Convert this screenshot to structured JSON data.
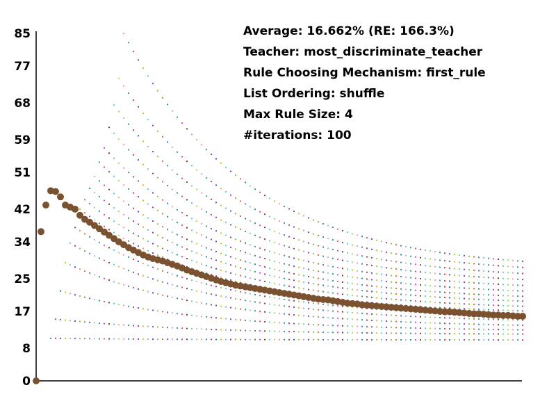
{
  "info": {
    "average": "Average: 16.662% (RE: 166.3%)",
    "teacher": "Teacher: most_discriminate_teacher",
    "mechanism": "Rule Choosing Mechanism: first_rule",
    "ordering": "List Ordering: shuffle",
    "max_rule_size": "Max Rule Size: 4",
    "iterations": "#iterations: 100"
  },
  "chart_data": {
    "type": "scatter",
    "title": "",
    "xlabel": "",
    "ylabel": "",
    "ylim": [
      0,
      85
    ],
    "xlim": [
      0,
      100
    ],
    "y_ticks": [
      "0",
      "8",
      "17",
      "25",
      "34",
      "42",
      "51",
      "59",
      "68",
      "77",
      "85"
    ],
    "grid": false,
    "series_colors": [
      "#1e9e64",
      "#c8325a",
      "#3c50c8",
      "#e6b400",
      "#50d2c8",
      "#8c28c8",
      "#78c81e",
      "#dc6428",
      "#2878dc",
      "#b4b4b4",
      "#14a078",
      "#e63cb4",
      "#6e3c14",
      "#46c8ff",
      "#a0dc3c",
      "#ff8cb4"
    ],
    "average_color": "#7a5230",
    "series_note_start": [
      {
        "start": 3,
        "y0": 10.4,
        "y_end": 10.0
      },
      {
        "start": 4,
        "y0": 15.1,
        "y_end": 11.3
      },
      {
        "start": 5,
        "y0": 22.0,
        "y_end": 12.1
      },
      {
        "start": 6,
        "y0": 28.9,
        "y_end": 13.0
      },
      {
        "start": 7,
        "y0": 33.7,
        "y_end": 14.1
      },
      {
        "start": 8,
        "y0": 37.5,
        "y_end": 15.0
      },
      {
        "start": 9,
        "y0": 42.0,
        "y_end": 16.1
      },
      {
        "start": 10,
        "y0": 44.3,
        "y_end": 17.2
      },
      {
        "start": 11,
        "y0": 47.1,
        "y_end": 18.4
      },
      {
        "start": 12,
        "y0": 50.0,
        "y_end": 19.5
      },
      {
        "start": 13,
        "y0": 53.5,
        "y_end": 20.7
      },
      {
        "start": 14,
        "y0": 57.0,
        "y_end": 22.0
      },
      {
        "start": 15,
        "y0": 62.0,
        "y_end": 23.3
      },
      {
        "start": 16,
        "y0": 67.5,
        "y_end": 24.6
      },
      {
        "start": 17,
        "y0": 74.0,
        "y_end": 25.9
      },
      {
        "start": 18,
        "y0": 85.0,
        "y_end": 27.0
      }
    ],
    "average": [
      [
        0,
        0.0
      ],
      [
        1,
        36.5
      ],
      [
        2,
        43.0
      ],
      [
        3,
        46.5
      ],
      [
        4,
        46.3
      ],
      [
        5,
        45.0
      ],
      [
        6,
        43.0
      ],
      [
        7,
        42.5
      ],
      [
        8,
        42.0
      ],
      [
        9,
        40.5
      ],
      [
        10,
        39.5
      ],
      [
        11,
        38.8
      ],
      [
        12,
        38.0
      ],
      [
        13,
        37.2
      ],
      [
        14,
        36.4
      ],
      [
        15,
        35.6
      ],
      [
        16,
        34.8
      ],
      [
        17,
        34.0
      ],
      [
        18,
        33.3
      ],
      [
        19,
        32.6
      ],
      [
        20,
        32.0
      ],
      [
        21,
        31.4
      ],
      [
        22,
        30.8
      ],
      [
        23,
        30.3
      ],
      [
        24,
        29.9
      ],
      [
        25,
        29.6
      ],
      [
        26,
        29.3
      ],
      [
        27,
        28.9
      ],
      [
        28,
        28.5
      ],
      [
        29,
        28.1
      ],
      [
        30,
        27.6
      ],
      [
        31,
        27.1
      ],
      [
        32,
        26.7
      ],
      [
        33,
        26.3
      ],
      [
        34,
        25.9
      ],
      [
        35,
        25.5
      ],
      [
        36,
        25.1
      ],
      [
        37,
        24.7
      ],
      [
        38,
        24.3
      ],
      [
        39,
        24.0
      ],
      [
        40,
        23.7
      ],
      [
        41,
        23.4
      ],
      [
        42,
        23.2
      ],
      [
        43,
        23.0
      ],
      [
        44,
        22.8
      ],
      [
        45,
        22.6
      ],
      [
        46,
        22.4
      ],
      [
        47,
        22.2
      ],
      [
        48,
        22.0
      ],
      [
        49,
        21.8
      ],
      [
        50,
        21.6
      ],
      [
        51,
        21.4
      ],
      [
        52,
        21.2
      ],
      [
        53,
        21.0
      ],
      [
        54,
        20.8
      ],
      [
        55,
        20.6
      ],
      [
        56,
        20.4
      ],
      [
        57,
        20.2
      ],
      [
        58,
        20.0
      ],
      [
        59,
        19.9
      ],
      [
        60,
        19.8
      ],
      [
        61,
        19.6
      ],
      [
        62,
        19.4
      ],
      [
        63,
        19.2
      ],
      [
        64,
        19.0
      ],
      [
        65,
        18.9
      ],
      [
        66,
        18.8
      ],
      [
        67,
        18.6
      ],
      [
        68,
        18.5
      ],
      [
        69,
        18.4
      ],
      [
        70,
        18.3
      ],
      [
        71,
        18.2
      ],
      [
        72,
        18.1
      ],
      [
        73,
        18.0
      ],
      [
        74,
        17.9
      ],
      [
        75,
        17.8
      ],
      [
        76,
        17.7
      ],
      [
        77,
        17.6
      ],
      [
        78,
        17.5
      ],
      [
        79,
        17.4
      ],
      [
        80,
        17.3
      ],
      [
        81,
        17.2
      ],
      [
        82,
        17.1
      ],
      [
        83,
        17.0
      ],
      [
        84,
        16.9
      ],
      [
        85,
        16.9
      ],
      [
        86,
        16.8
      ],
      [
        87,
        16.7
      ],
      [
        88,
        16.6
      ],
      [
        89,
        16.5
      ],
      [
        90,
        16.4
      ],
      [
        91,
        16.4
      ],
      [
        92,
        16.3
      ],
      [
        93,
        16.2
      ],
      [
        94,
        16.1
      ],
      [
        95,
        16.1
      ],
      [
        96,
        16.0
      ],
      [
        97,
        16.0
      ],
      [
        98,
        15.9
      ],
      [
        99,
        15.8
      ],
      [
        100,
        15.8
      ]
    ]
  }
}
